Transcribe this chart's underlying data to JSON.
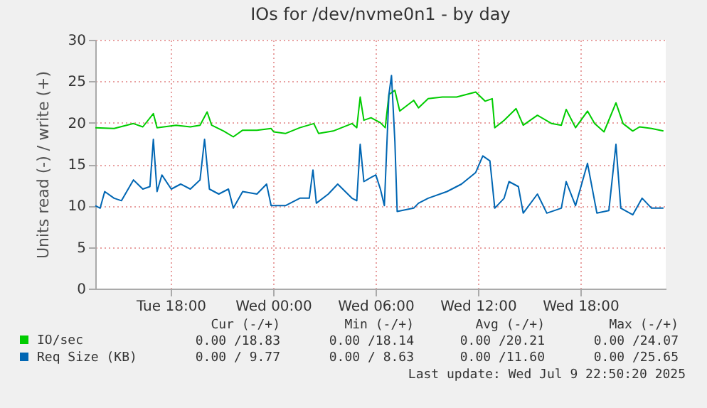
{
  "chart_data": {
    "type": "line",
    "title": "IOs for /dev/nvme0n1 - by day",
    "ylabel": "Units read (-) / write (+)",
    "xlim": [
      "2025-07-08T13:35",
      "2025-07-09T23:00"
    ],
    "xticks": [
      {
        "value": "2025-07-08T18:00",
        "label": "Tue 18:00"
      },
      {
        "value": "2025-07-09T00:00",
        "label": "Wed 00:00"
      },
      {
        "value": "2025-07-09T06:00",
        "label": "Wed 06:00"
      },
      {
        "value": "2025-07-09T12:00",
        "label": "Wed 12:00"
      },
      {
        "value": "2025-07-09T18:00",
        "label": "Wed 18:00"
      }
    ],
    "ylim": [
      0,
      30
    ],
    "yticks": [
      0,
      5,
      10,
      15,
      20,
      25,
      30
    ],
    "grid": true,
    "legend": "bottom",
    "marker": "none",
    "line_style": "solid",
    "series": [
      {
        "name": "IO/sec",
        "color": "#00cc00",
        "x": [
          "2025-07-08T13:35",
          "2025-07-08T14:41",
          "2025-07-08T15:49",
          "2025-07-08T16:22",
          "2025-07-08T16:59",
          "2025-07-08T17:12",
          "2025-07-08T18:19",
          "2025-07-08T19:09",
          "2025-07-08T19:43",
          "2025-07-08T20:08",
          "2025-07-08T20:24",
          "2025-07-08T21:06",
          "2025-07-08T21:40",
          "2025-07-08T22:13",
          "2025-07-08T23:03",
          "2025-07-08T23:53",
          "2025-07-09T00:02",
          "2025-07-09T00:43",
          "2025-07-09T01:34",
          "2025-07-09T02:23",
          "2025-07-09T02:40",
          "2025-07-09T03:31",
          "2025-07-09T04:37",
          "2025-07-09T04:54",
          "2025-07-09T05:06",
          "2025-07-09T05:19",
          "2025-07-09T05:44",
          "2025-07-09T06:17",
          "2025-07-09T06:34",
          "2025-07-09T06:47",
          "2025-07-09T07:08",
          "2025-07-09T07:25",
          "2025-07-09T08:14",
          "2025-07-09T08:31",
          "2025-07-09T09:05",
          "2025-07-09T09:55",
          "2025-07-09T10:45",
          "2025-07-09T11:52",
          "2025-07-09T12:25",
          "2025-07-09T12:50",
          "2025-07-09T12:59",
          "2025-07-09T13:32",
          "2025-07-09T14:14",
          "2025-07-09T14:39",
          "2025-07-09T15:29",
          "2025-07-09T16:19",
          "2025-07-09T16:53",
          "2025-07-09T17:10",
          "2025-07-09T17:43",
          "2025-07-09T18:25",
          "2025-07-09T18:50",
          "2025-07-09T19:23",
          "2025-07-09T20:05",
          "2025-07-09T20:30",
          "2025-07-09T21:04",
          "2025-07-09T21:28",
          "2025-07-09T22:10",
          "2025-07-09T22:52"
        ],
        "values": [
          19.4,
          19.3,
          19.9,
          19.5,
          21.1,
          19.4,
          19.7,
          19.5,
          19.7,
          21.3,
          19.7,
          19.0,
          18.3,
          19.1,
          19.1,
          19.3,
          18.9,
          18.7,
          19.4,
          19.9,
          18.7,
          19.0,
          19.9,
          19.4,
          23.1,
          20.3,
          20.6,
          20.0,
          19.4,
          23.4,
          23.9,
          21.4,
          22.7,
          21.8,
          22.9,
          23.1,
          23.1,
          23.7,
          22.6,
          22.9,
          19.4,
          20.3,
          21.7,
          19.7,
          20.9,
          19.9,
          19.7,
          21.6,
          19.4,
          21.4,
          19.9,
          18.9,
          22.4,
          19.9,
          19.0,
          19.5,
          19.3,
          19.0
        ]
      },
      {
        "name": "Req Size (KB)",
        "color": "#0066b3",
        "x": [
          "2025-07-08T13:35",
          "2025-07-08T13:52",
          "2025-07-08T14:08",
          "2025-07-08T14:41",
          "2025-07-08T15:07",
          "2025-07-08T15:49",
          "2025-07-08T16:22",
          "2025-07-08T16:47",
          "2025-07-08T16:59",
          "2025-07-08T17:12",
          "2025-07-08T17:29",
          "2025-07-08T18:02",
          "2025-07-08T18:35",
          "2025-07-08T19:09",
          "2025-07-08T19:43",
          "2025-07-08T19:59",
          "2025-07-08T20:16",
          "2025-07-08T20:49",
          "2025-07-08T21:23",
          "2025-07-08T21:40",
          "2025-07-08T22:13",
          "2025-07-08T23:03",
          "2025-07-08T23:37",
          "2025-07-08T23:53",
          "2025-07-09T00:43",
          "2025-07-09T01:34",
          "2025-07-09T02:07",
          "2025-07-09T02:20",
          "2025-07-09T02:32",
          "2025-07-09T03:14",
          "2025-07-09T03:47",
          "2025-07-09T04:37",
          "2025-07-09T04:54",
          "2025-07-09T05:06",
          "2025-07-09T05:19",
          "2025-07-09T05:44",
          "2025-07-09T06:01",
          "2025-07-09T06:17",
          "2025-07-09T06:31",
          "2025-07-09T06:47",
          "2025-07-09T06:56",
          "2025-07-09T07:08",
          "2025-07-09T07:16",
          "2025-07-09T08:14",
          "2025-07-09T08:31",
          "2025-07-09T09:05",
          "2025-07-09T10:11",
          "2025-07-09T11:02",
          "2025-07-09T11:52",
          "2025-07-09T12:17",
          "2025-07-09T12:42",
          "2025-07-09T12:59",
          "2025-07-09T13:32",
          "2025-07-09T13:49",
          "2025-07-09T14:22",
          "2025-07-09T14:39",
          "2025-07-09T15:29",
          "2025-07-09T16:02",
          "2025-07-09T16:53",
          "2025-07-09T17:10",
          "2025-07-09T17:43",
          "2025-07-09T18:25",
          "2025-07-09T18:58",
          "2025-07-09T19:40",
          "2025-07-09T20:05",
          "2025-07-09T20:22",
          "2025-07-09T21:04",
          "2025-07-09T21:37",
          "2025-07-09T22:10",
          "2025-07-09T22:52"
        ],
        "values": [
          10.0,
          9.7,
          11.7,
          10.9,
          10.6,
          13.1,
          12.0,
          12.3,
          18.0,
          11.7,
          13.7,
          12.0,
          12.6,
          12.0,
          13.1,
          18.0,
          12.0,
          11.4,
          12.0,
          9.7,
          11.7,
          11.4,
          12.6,
          10.0,
          10.0,
          10.9,
          10.9,
          14.3,
          10.3,
          11.4,
          12.6,
          10.9,
          10.6,
          17.4,
          12.9,
          13.4,
          13.7,
          12.0,
          10.0,
          23.4,
          25.7,
          17.7,
          9.3,
          9.7,
          10.3,
          10.9,
          11.7,
          12.6,
          14.0,
          16.0,
          15.4,
          9.7,
          10.9,
          12.9,
          12.3,
          9.1,
          11.4,
          9.1,
          9.7,
          12.9,
          10.0,
          15.1,
          9.1,
          9.4,
          17.4,
          9.7,
          8.9,
          10.9,
          9.7,
          9.7
        ]
      }
    ],
    "annotations": [
      "Cur (-/+)",
      "Min (-/+)",
      "Avg (-/+)",
      "Max (-/+)",
      "0.00 /18.83",
      "0.00 /18.14",
      "0.00 /20.21",
      "0.00 /24.07",
      "0.00 / 9.77",
      "0.00 / 8.63",
      "0.00 /11.60",
      "0.00 /25.65",
      "Last update: Wed Jul  9 22:50:20 2025"
    ]
  }
}
